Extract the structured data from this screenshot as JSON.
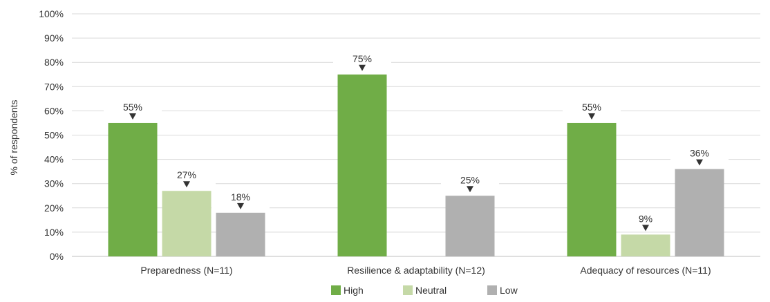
{
  "chart_data": {
    "type": "bar",
    "title": "",
    "xlabel": "",
    "ylabel": "% of respondents",
    "ylim": [
      0,
      100
    ],
    "y_ticks": [
      "0%",
      "10%",
      "20%",
      "30%",
      "40%",
      "50%",
      "60%",
      "70%",
      "80%",
      "90%",
      "100%"
    ],
    "y_tick_values": [
      0,
      10,
      20,
      30,
      40,
      50,
      60,
      70,
      80,
      90,
      100
    ],
    "grid": true,
    "legend_position": "bottom",
    "categories": [
      "Preparedness (N=11)",
      "Resilience & adaptability (N=12)",
      "Adequacy of resources (N=11)"
    ],
    "series": [
      {
        "name": "High",
        "color": "#70ad47",
        "values": [
          55,
          75,
          55
        ]
      },
      {
        "name": "Neutral",
        "color": "#c5d9a7",
        "values": [
          27,
          null,
          9
        ]
      },
      {
        "name": "Low",
        "color": "#b0b0b0",
        "values": [
          18,
          25,
          36
        ]
      }
    ],
    "data_labels": [
      [
        "55%",
        "75%",
        "55%"
      ],
      [
        "27%",
        null,
        "9%"
      ],
      [
        "18%",
        "25%",
        "36%"
      ]
    ]
  }
}
